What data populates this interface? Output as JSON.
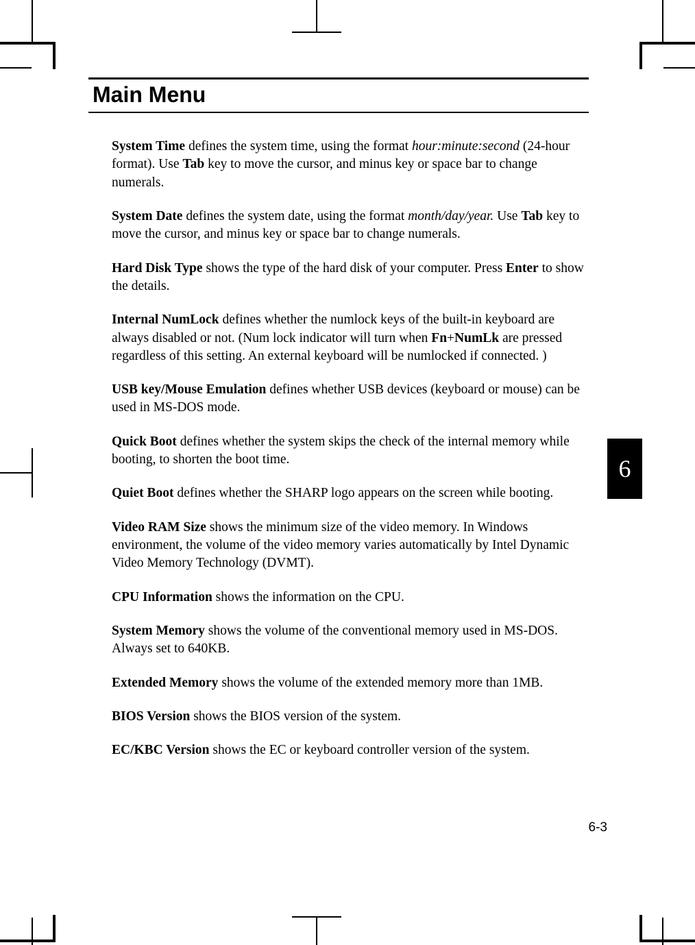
{
  "heading": "Main Menu",
  "chapter_tab": "6",
  "page_number": "6-3",
  "colors": {
    "text": "#000000",
    "background": "#ffffff",
    "tab_bg": "#000000",
    "tab_text": "#ffffff"
  },
  "typography": {
    "heading_font": "Arial",
    "heading_size_pt": 24,
    "heading_weight": "bold",
    "body_font": "Times New Roman",
    "body_size_pt": 14,
    "chapter_tab_size_pt": 27,
    "page_number_font": "Arial",
    "page_number_size_pt": 14
  },
  "paragraphs": [
    {
      "segments": [
        {
          "text": "System Time",
          "bold": true
        },
        {
          "text": " defines the system time, using the format "
        },
        {
          "text": "hour:minute:second",
          "italic": true
        },
        {
          "text": " (24-hour format).  Use "
        },
        {
          "text": "Tab",
          "bold": true
        },
        {
          "text": " key to move the cursor, and minus key or space bar to change numerals."
        }
      ]
    },
    {
      "segments": [
        {
          "text": "System Date",
          "bold": true
        },
        {
          "text": " defines the system date, using the format "
        },
        {
          "text": "month/day/year.",
          "italic": true
        },
        {
          "text": " Use "
        },
        {
          "text": "Tab",
          "bold": true
        },
        {
          "text": " key to move the cursor, and minus key or space bar to change numerals."
        }
      ]
    },
    {
      "segments": [
        {
          "text": "Hard Disk Type",
          "bold": true
        },
        {
          "text": " shows the type of the hard disk of your computer. Press "
        },
        {
          "text": "Enter",
          "bold": true
        },
        {
          "text": " to show the details."
        }
      ]
    },
    {
      "segments": [
        {
          "text": "Internal NumLock",
          "bold": true
        },
        {
          "text": " defines whether the numlock keys of the built-in keyboard are always disabled or not. (Num lock indicator will turn when "
        },
        {
          "text": "Fn",
          "bold": true
        },
        {
          "text": "+"
        },
        {
          "text": "NumLk",
          "bold": true
        },
        {
          "text": " are pressed regardless of this setting. An external keyboard will be numlocked if connected. )"
        }
      ]
    },
    {
      "segments": [
        {
          "text": "USB key/Mouse Emulation",
          "bold": true
        },
        {
          "text": " defines whether USB devices (keyboard or mouse) can be used in MS-DOS mode."
        }
      ]
    },
    {
      "segments": [
        {
          "text": "Quick Boot",
          "bold": true
        },
        {
          "text": " defines whether the system skips the check of the internal memory while booting, to shorten the boot time."
        }
      ]
    },
    {
      "segments": [
        {
          "text": "Quiet Boot",
          "bold": true
        },
        {
          "text": " defines whether the SHARP logo appears on the screen while booting."
        }
      ]
    },
    {
      "segments": [
        {
          "text": "Video RAM Size",
          "bold": true
        },
        {
          "text": " shows the minimum size of the video memory. In Windows environment, the volume of the video memory varies automatically by Intel Dynamic Video Memory Technology (DVMT)."
        }
      ]
    },
    {
      "segments": [
        {
          "text": "CPU Information",
          "bold": true
        },
        {
          "text": " shows the information on the CPU."
        }
      ]
    },
    {
      "segments": [
        {
          "text": "System Memory",
          "bold": true
        },
        {
          "text": " shows the volume of the conventional memory used in MS-DOS. Always set to 640KB."
        }
      ]
    },
    {
      "segments": [
        {
          "text": "Extended Memory",
          "bold": true
        },
        {
          "text": " shows the volume of the extended memory more than 1MB."
        }
      ]
    },
    {
      "segments": [
        {
          "text": "BIOS Version",
          "bold": true
        },
        {
          "text": " shows the BIOS version of the system."
        }
      ]
    },
    {
      "segments": [
        {
          "text": "EC/KBC Version",
          "bold": true
        },
        {
          "text": " shows the EC or keyboard controller version of the system."
        }
      ]
    }
  ]
}
